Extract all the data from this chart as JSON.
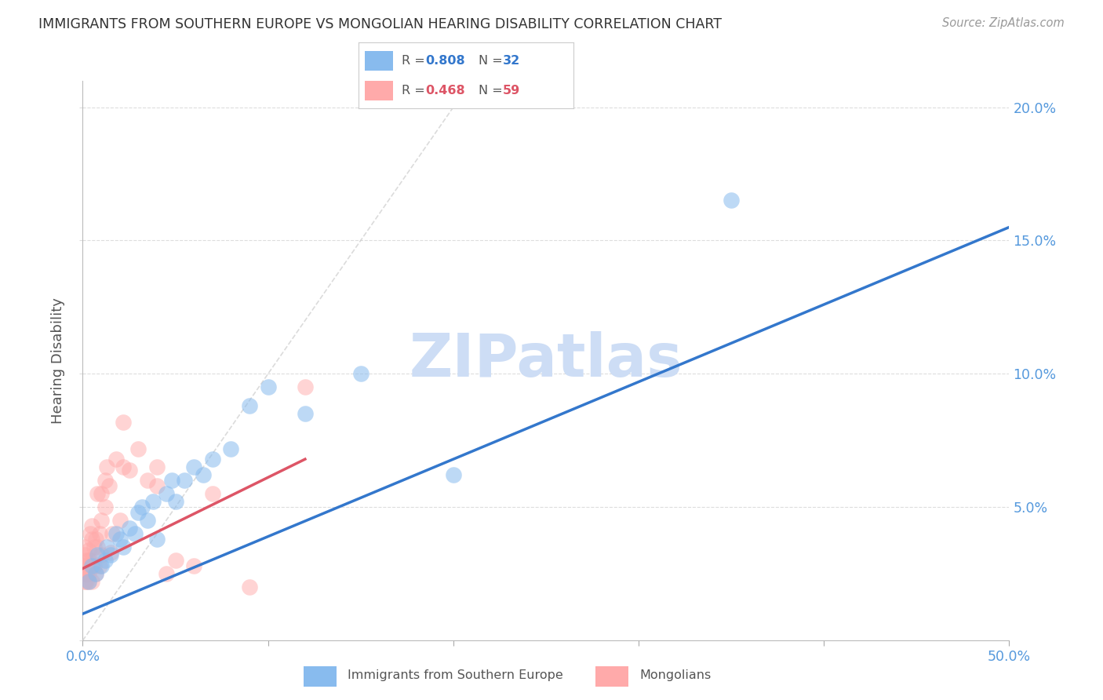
{
  "title": "IMMIGRANTS FROM SOUTHERN EUROPE VS MONGOLIAN HEARING DISABILITY CORRELATION CHART",
  "source": "Source: ZipAtlas.com",
  "ylabel": "Hearing Disability",
  "xlim": [
    0.0,
    0.5
  ],
  "ylim": [
    0.0,
    0.21
  ],
  "blue_color": "#88bbee",
  "pink_color": "#ffaaaa",
  "blue_line_color": "#3377cc",
  "pink_line_color": "#dd5566",
  "diag_line_color": "#cccccc",
  "watermark_color": "#cdddf5",
  "grid_color": "#dddddd",
  "tick_color": "#5599dd",
  "background_color": "#ffffff",
  "blue_scatter_x": [
    0.003,
    0.005,
    0.007,
    0.008,
    0.01,
    0.012,
    0.013,
    0.015,
    0.018,
    0.02,
    0.022,
    0.025,
    0.028,
    0.03,
    0.032,
    0.035,
    0.038,
    0.04,
    0.045,
    0.048,
    0.05,
    0.055,
    0.06,
    0.065,
    0.07,
    0.08,
    0.09,
    0.1,
    0.12,
    0.15,
    0.2,
    0.35
  ],
  "blue_scatter_y": [
    0.022,
    0.028,
    0.025,
    0.032,
    0.028,
    0.03,
    0.035,
    0.032,
    0.04,
    0.038,
    0.035,
    0.042,
    0.04,
    0.048,
    0.05,
    0.045,
    0.052,
    0.038,
    0.055,
    0.06,
    0.052,
    0.06,
    0.065,
    0.062,
    0.068,
    0.072,
    0.088,
    0.095,
    0.085,
    0.1,
    0.062,
    0.165
  ],
  "pink_scatter_x": [
    0.001,
    0.001,
    0.001,
    0.001,
    0.001,
    0.002,
    0.002,
    0.002,
    0.002,
    0.003,
    0.003,
    0.003,
    0.003,
    0.004,
    0.004,
    0.005,
    0.005,
    0.005,
    0.006,
    0.006,
    0.007,
    0.007,
    0.008,
    0.008,
    0.009,
    0.009,
    0.01,
    0.01,
    0.01,
    0.012,
    0.012,
    0.013,
    0.014,
    0.015,
    0.016,
    0.018,
    0.02,
    0.022,
    0.022,
    0.025,
    0.03,
    0.035,
    0.04,
    0.04,
    0.045,
    0.05,
    0.06,
    0.07,
    0.09,
    0.12
  ],
  "pink_scatter_y": [
    0.028,
    0.032,
    0.025,
    0.022,
    0.035,
    0.03,
    0.028,
    0.025,
    0.022,
    0.034,
    0.03,
    0.025,
    0.022,
    0.04,
    0.03,
    0.043,
    0.038,
    0.022,
    0.035,
    0.028,
    0.038,
    0.025,
    0.055,
    0.035,
    0.04,
    0.028,
    0.055,
    0.045,
    0.032,
    0.06,
    0.05,
    0.065,
    0.058,
    0.033,
    0.04,
    0.068,
    0.045,
    0.082,
    0.065,
    0.064,
    0.072,
    0.06,
    0.058,
    0.065,
    0.025,
    0.03,
    0.028,
    0.055,
    0.02,
    0.095
  ],
  "blue_line_x0": 0.0,
  "blue_line_y0": 0.01,
  "blue_line_x1": 0.5,
  "blue_line_y1": 0.155,
  "pink_line_x0": 0.0,
  "pink_line_y0": 0.027,
  "pink_line_x1": 0.12,
  "pink_line_y1": 0.068,
  "diag_line_x0": 0.0,
  "diag_line_y0": 0.0,
  "diag_line_x1": 0.21,
  "diag_line_y1": 0.21
}
